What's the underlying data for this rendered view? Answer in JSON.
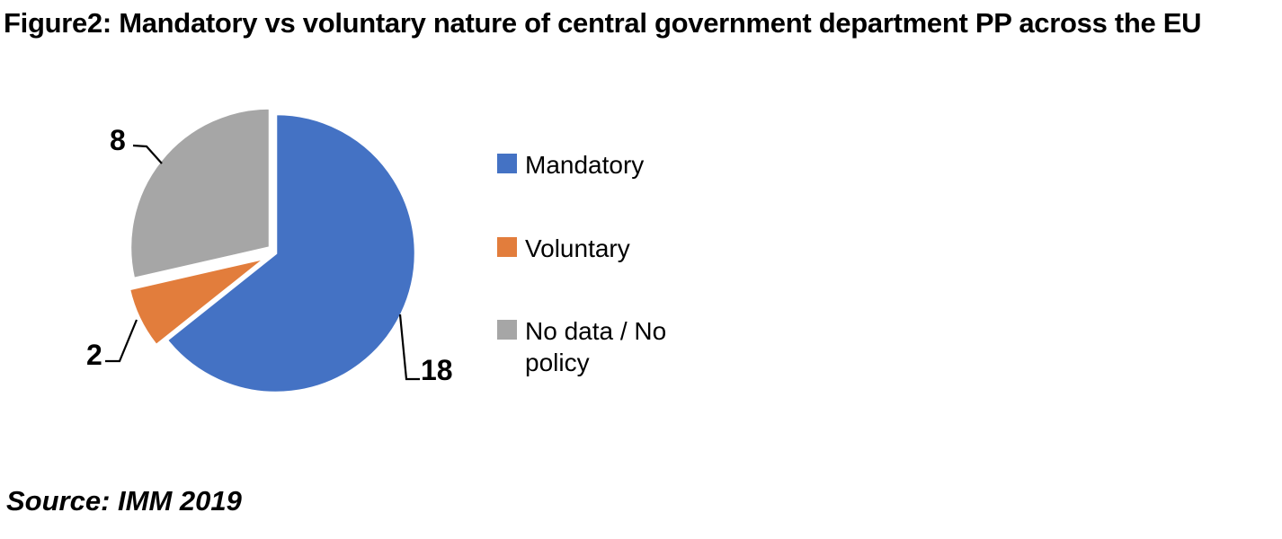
{
  "figure": {
    "title": "Figure2: Mandatory vs voluntary nature of central government department PP across the EU",
    "source_note": "Source: IMM 2019"
  },
  "chart_data": {
    "type": "pie",
    "title": "Figure2: Mandatory vs voluntary nature of central government department PP across the EU",
    "total": 28,
    "legend_position": "right",
    "start_angle_deg": 0,
    "direction": "clockwise",
    "exploded": true,
    "slices": [
      {
        "label": "Mandatory",
        "value": 18,
        "color": "#4472C4"
      },
      {
        "label": "Voluntary",
        "value": 2,
        "color": "#E27D3C"
      },
      {
        "label": "No data / No policy",
        "value": 8,
        "color": "#A6A6A6"
      }
    ],
    "data_labels": [
      18,
      2,
      8
    ],
    "source": "Source: IMM 2019"
  }
}
